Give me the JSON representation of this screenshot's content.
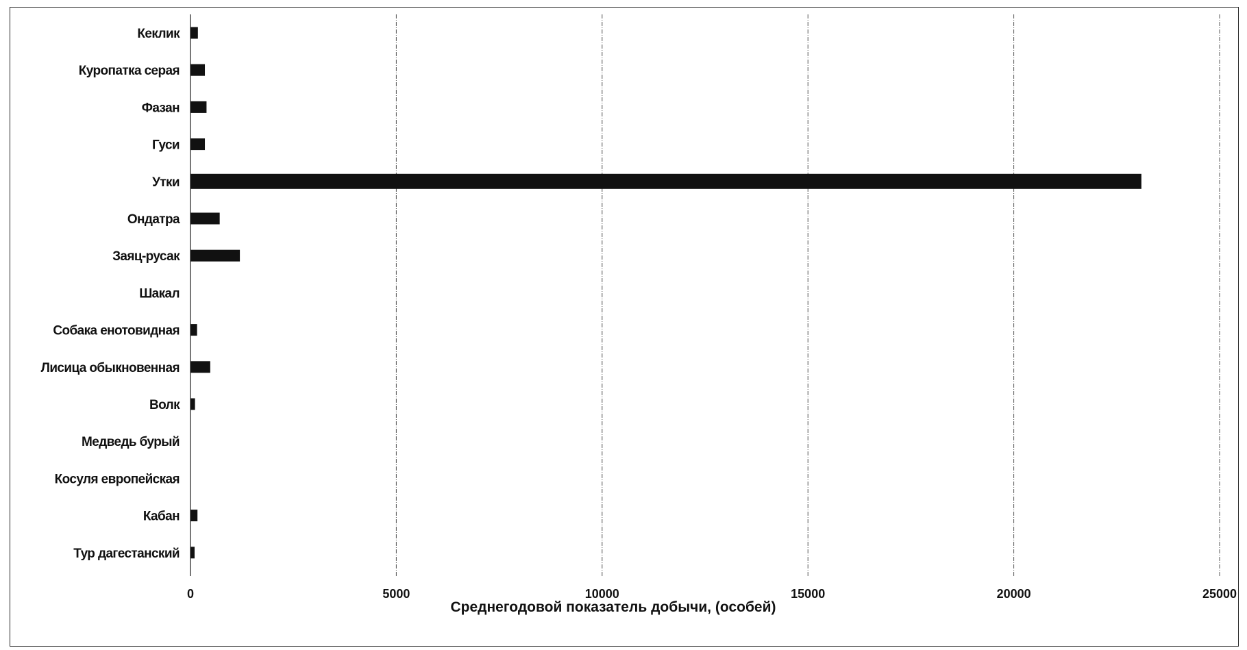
{
  "chart_data": {
    "type": "bar",
    "orientation": "horizontal",
    "categories": [
      "Кеклик",
      "Куропатка серая",
      "Фазан",
      "Гуси",
      "Утки",
      "Ондатра",
      "Заяц-русак",
      "Шакал",
      "Собака енотовидная",
      "Лисица обыкновенная",
      "Волк",
      "Медведь бурый",
      "Косуля европейская",
      "Кабан",
      "Тур дагестанский"
    ],
    "values": [
      180,
      350,
      390,
      350,
      23100,
      710,
      1200,
      0,
      160,
      480,
      110,
      0,
      0,
      170,
      100
    ],
    "title": "",
    "xlabel": "Среднегодовой показатель добычи, (особей)",
    "ylabel": "",
    "xlim": [
      0,
      25000
    ],
    "xticks": [
      0,
      5000,
      10000,
      15000,
      20000,
      25000
    ],
    "xtick_labels": [
      "0",
      "5000",
      "10000",
      "15000",
      "20000",
      "25000"
    ],
    "grid": "vertical",
    "legend": "none",
    "bar_color": "#111111",
    "grid_color": "#555555"
  }
}
